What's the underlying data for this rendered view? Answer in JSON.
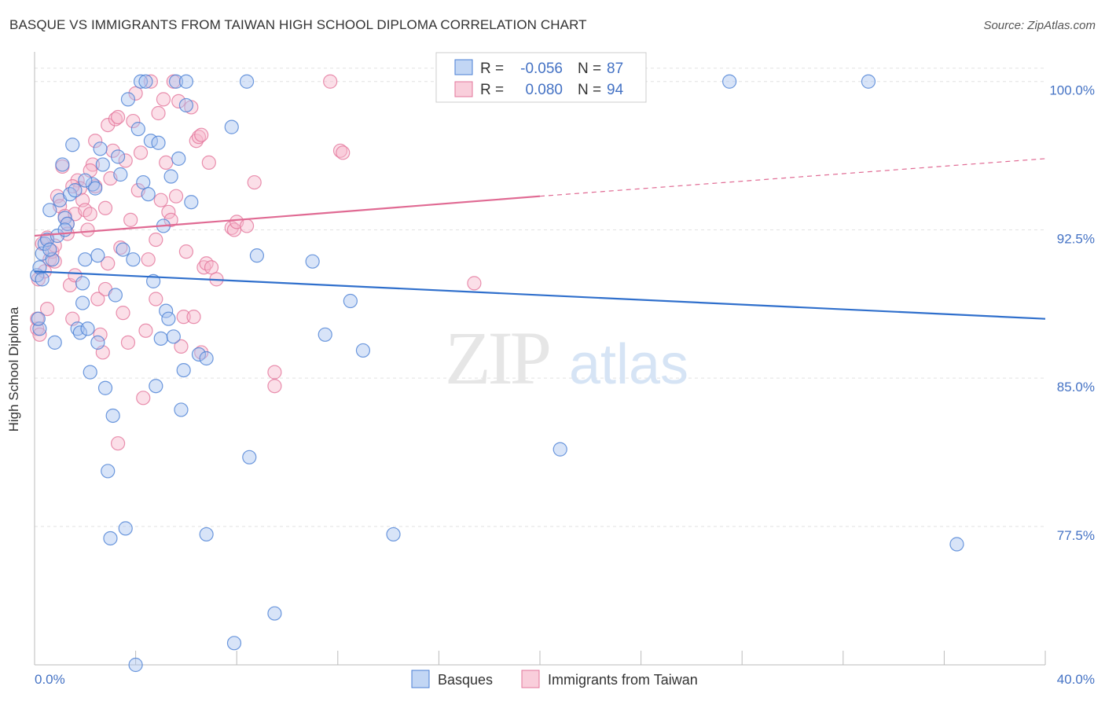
{
  "header": {
    "title": "BASQUE VS IMMIGRANTS FROM TAIWAN HIGH SCHOOL DIPLOMA CORRELATION CHART",
    "source": "Source: ZipAtlas.com"
  },
  "watermark": {
    "zip": "ZIP",
    "atlas": "atlas"
  },
  "legend_box": {
    "rows": [
      {
        "r_label": "R =",
        "r_value": "-0.056",
        "n_label": "N =",
        "n_value": "87"
      },
      {
        "r_label": "R =",
        "r_value": "0.080",
        "n_label": "N =",
        "n_value": "94"
      }
    ]
  },
  "bottom_legend": {
    "items": [
      "Basques",
      "Immigrants from Taiwan"
    ]
  },
  "colors": {
    "blue": "#4a7fd4",
    "blue_fill": "#a8c4ef",
    "blue_line": "#2f6fcc",
    "pink": "#e3759b",
    "pink_fill": "#f6b9cc",
    "pink_line": "#e06a93",
    "tick_text": "#4472c4"
  },
  "chart_data": {
    "type": "scatter",
    "title": "BASQUE VS IMMIGRANTS FROM TAIWAN HIGH SCHOOL DIPLOMA CORRELATION CHART",
    "xlabel": "",
    "ylabel": "High School Diploma",
    "xlim": [
      0,
      40
    ],
    "ylim": [
      70.5,
      101.5
    ],
    "x_tick_labels": [
      "0.0%",
      "40.0%"
    ],
    "y_ticks": [
      77.5,
      85.0,
      92.5,
      100.0
    ],
    "y_tick_labels": [
      "77.5%",
      "85.0%",
      "92.5%",
      "100.0%"
    ],
    "grid": true,
    "legend_position": "top-center",
    "series": [
      {
        "name": "Basques",
        "r": -0.056,
        "n": 87,
        "trend": {
          "x": [
            0,
            40
          ],
          "y": [
            90.4,
            88.0
          ]
        },
        "points": [
          [
            0.1,
            90.2
          ],
          [
            0.2,
            90.6
          ],
          [
            0.3,
            91.3
          ],
          [
            0.3,
            90.0
          ],
          [
            0.4,
            91.8
          ],
          [
            0.5,
            92.0
          ],
          [
            0.6,
            93.5
          ],
          [
            0.7,
            91.0
          ],
          [
            0.8,
            86.8
          ],
          [
            0.9,
            92.2
          ],
          [
            1.0,
            94.0
          ],
          [
            1.1,
            95.8
          ],
          [
            1.2,
            93.1
          ],
          [
            1.3,
            92.8
          ],
          [
            1.4,
            94.3
          ],
          [
            1.5,
            96.8
          ],
          [
            1.6,
            94.5
          ],
          [
            1.7,
            87.5
          ],
          [
            1.8,
            87.3
          ],
          [
            1.9,
            88.8
          ],
          [
            1.9,
            89.8
          ],
          [
            2.0,
            91.0
          ],
          [
            2.1,
            87.5
          ],
          [
            2.2,
            85.3
          ],
          [
            2.3,
            94.8
          ],
          [
            2.4,
            94.6
          ],
          [
            2.5,
            91.2
          ],
          [
            2.5,
            86.8
          ],
          [
            2.6,
            96.6
          ],
          [
            2.7,
            95.8
          ],
          [
            2.8,
            84.5
          ],
          [
            2.9,
            80.3
          ],
          [
            3.0,
            76.9
          ],
          [
            3.1,
            83.1
          ],
          [
            3.2,
            89.2
          ],
          [
            3.3,
            96.2
          ],
          [
            3.4,
            95.3
          ],
          [
            3.6,
            77.4
          ],
          [
            3.7,
            99.1
          ],
          [
            3.9,
            91.0
          ],
          [
            4.0,
            70.5
          ],
          [
            4.1,
            97.6
          ],
          [
            4.2,
            100.0
          ],
          [
            4.3,
            94.9
          ],
          [
            4.5,
            94.3
          ],
          [
            4.6,
            97.0
          ],
          [
            4.7,
            89.9
          ],
          [
            4.8,
            84.6
          ],
          [
            4.9,
            96.9
          ],
          [
            5.0,
            87.0
          ],
          [
            5.1,
            92.7
          ],
          [
            5.2,
            88.4
          ],
          [
            5.3,
            88.0
          ],
          [
            5.4,
            95.2
          ],
          [
            5.5,
            87.1
          ],
          [
            5.6,
            100.0
          ],
          [
            5.7,
            96.1
          ],
          [
            5.8,
            83.4
          ],
          [
            5.9,
            85.4
          ],
          [
            6.0,
            98.8
          ],
          [
            6.0,
            100.0
          ],
          [
            6.2,
            93.9
          ],
          [
            6.5,
            86.2
          ],
          [
            6.8,
            77.1
          ],
          [
            7.8,
            97.7
          ],
          [
            7.9,
            71.6
          ],
          [
            8.4,
            100.0
          ],
          [
            8.5,
            81.0
          ],
          [
            8.8,
            91.2
          ],
          [
            9.5,
            73.1
          ],
          [
            11.0,
            90.9
          ],
          [
            11.5,
            87.2
          ],
          [
            12.5,
            88.9
          ],
          [
            13.0,
            86.4
          ],
          [
            14.2,
            77.1
          ],
          [
            20.8,
            81.4
          ],
          [
            27.5,
            100.0
          ],
          [
            33.0,
            100.0
          ],
          [
            36.5,
            76.6
          ],
          [
            0.2,
            87.5
          ],
          [
            0.15,
            88.0
          ],
          [
            0.6,
            91.5
          ],
          [
            1.2,
            92.5
          ],
          [
            2.0,
            95.0
          ],
          [
            3.5,
            91.5
          ],
          [
            4.4,
            100.0
          ],
          [
            6.8,
            86.0
          ]
        ]
      },
      {
        "name": "Immigrants from Taiwan",
        "r": 0.08,
        "n": 94,
        "trend": {
          "x": [
            0,
            20
          ],
          "y": [
            92.2,
            94.2
          ],
          "dashed_extension": {
            "x": [
              20,
              40
            ],
            "y": [
              94.2,
              96.1
            ]
          }
        },
        "points": [
          [
            0.1,
            87.5
          ],
          [
            0.1,
            88.0
          ],
          [
            0.15,
            90.0
          ],
          [
            0.2,
            87.2
          ],
          [
            0.3,
            91.8
          ],
          [
            0.4,
            90.4
          ],
          [
            0.5,
            92.1
          ],
          [
            0.6,
            91.0
          ],
          [
            0.7,
            91.4
          ],
          [
            0.8,
            91.7
          ],
          [
            0.9,
            94.2
          ],
          [
            1.0,
            93.7
          ],
          [
            1.1,
            95.7
          ],
          [
            1.2,
            93.2
          ],
          [
            1.3,
            92.8
          ],
          [
            1.4,
            89.7
          ],
          [
            1.5,
            88.0
          ],
          [
            1.6,
            93.3
          ],
          [
            1.7,
            95.0
          ],
          [
            1.8,
            94.6
          ],
          [
            1.9,
            94.0
          ],
          [
            2.0,
            93.5
          ],
          [
            2.1,
            92.5
          ],
          [
            2.2,
            93.3
          ],
          [
            2.3,
            95.8
          ],
          [
            2.4,
            94.7
          ],
          [
            2.5,
            89.0
          ],
          [
            2.6,
            87.2
          ],
          [
            2.7,
            86.3
          ],
          [
            2.8,
            93.6
          ],
          [
            2.9,
            97.8
          ],
          [
            3.0,
            95.1
          ],
          [
            3.1,
            96.5
          ],
          [
            3.2,
            98.1
          ],
          [
            3.3,
            98.2
          ],
          [
            3.4,
            91.6
          ],
          [
            3.5,
            88.3
          ],
          [
            3.6,
            96.0
          ],
          [
            3.7,
            86.8
          ],
          [
            3.8,
            93.0
          ],
          [
            4.0,
            99.4
          ],
          [
            4.1,
            94.5
          ],
          [
            4.2,
            96.4
          ],
          [
            4.3,
            84.0
          ],
          [
            4.4,
            87.4
          ],
          [
            4.5,
            91.0
          ],
          [
            4.6,
            100.0
          ],
          [
            4.8,
            89.0
          ],
          [
            4.9,
            98.4
          ],
          [
            5.0,
            94.0
          ],
          [
            5.1,
            99.1
          ],
          [
            5.2,
            95.9
          ],
          [
            5.3,
            93.4
          ],
          [
            5.5,
            100.0
          ],
          [
            5.6,
            94.2
          ],
          [
            5.8,
            86.6
          ],
          [
            5.9,
            88.1
          ],
          [
            6.0,
            91.4
          ],
          [
            6.2,
            98.7
          ],
          [
            6.3,
            88.1
          ],
          [
            6.4,
            97.0
          ],
          [
            6.5,
            97.2
          ],
          [
            6.6,
            86.3
          ],
          [
            6.7,
            90.6
          ],
          [
            6.8,
            90.8
          ],
          [
            6.9,
            95.9
          ],
          [
            7.0,
            90.6
          ],
          [
            7.2,
            90.0
          ],
          [
            7.8,
            92.6
          ],
          [
            7.9,
            92.5
          ],
          [
            8.0,
            92.9
          ],
          [
            8.4,
            92.7
          ],
          [
            8.7,
            94.9
          ],
          [
            9.5,
            85.3
          ],
          [
            9.5,
            84.6
          ],
          [
            11.7,
            100.0
          ],
          [
            12.1,
            96.5
          ],
          [
            12.2,
            96.4
          ],
          [
            17.4,
            89.8
          ],
          [
            1.6,
            90.2
          ],
          [
            2.2,
            95.5
          ],
          [
            2.9,
            90.8
          ],
          [
            3.3,
            81.7
          ],
          [
            4.8,
            92.0
          ],
          [
            5.7,
            99.0
          ],
          [
            6.6,
            97.3
          ],
          [
            0.5,
            88.5
          ],
          [
            1.3,
            92.3
          ],
          [
            2.4,
            97.0
          ],
          [
            3.9,
            98.0
          ],
          [
            0.8,
            90.9
          ],
          [
            1.5,
            94.7
          ],
          [
            2.8,
            89.5
          ],
          [
            5.4,
            93.0
          ]
        ]
      }
    ]
  }
}
